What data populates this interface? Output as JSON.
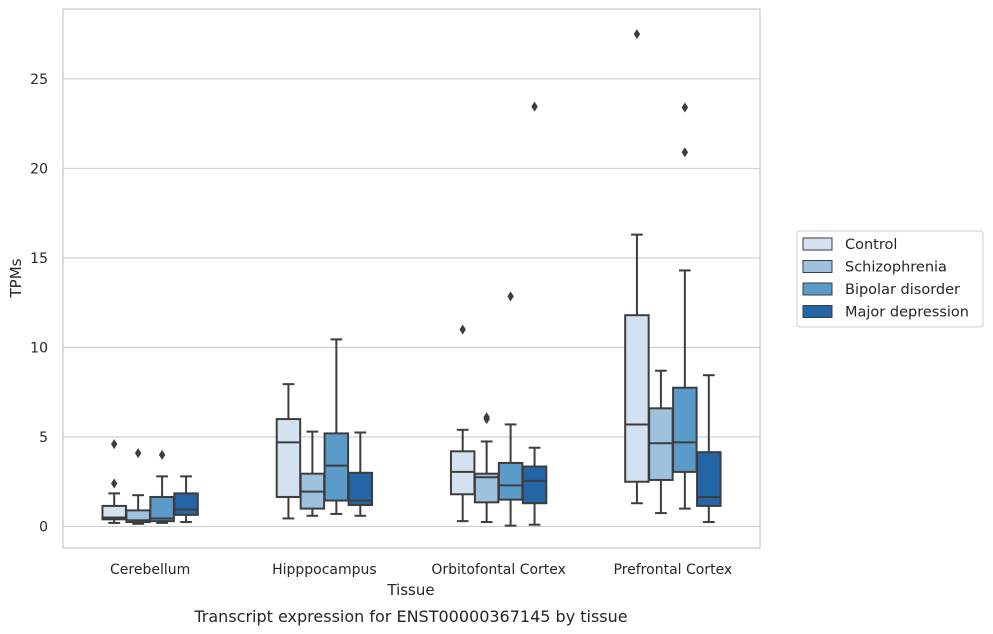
{
  "chart_data": {
    "type": "box",
    "xlabel": "Tissue",
    "ylabel": "TPMs",
    "caption": "Transcript expression for ENST00000367145 by tissue",
    "ylim": [
      -1.2,
      28.9
    ],
    "yticks": [
      0,
      5,
      10,
      15,
      20,
      25
    ],
    "grid": true,
    "legend_position": "right",
    "categories": [
      "Cerebellum",
      "Hipppocampus",
      "Orbitofontal Cortex",
      "Prefrontal Cortex"
    ],
    "series": [
      {
        "name": "Control",
        "color": "#d3e1f0",
        "boxes": [
          {
            "whisker_low": 0.2,
            "q1": 0.4,
            "median": 0.5,
            "q3": 1.15,
            "whisker_high": 1.85,
            "outliers": [
              2.4,
              4.6
            ]
          },
          {
            "whisker_low": 0.45,
            "q1": 1.65,
            "median": 4.7,
            "q3": 6.0,
            "whisker_high": 7.95,
            "outliers": []
          },
          {
            "whisker_low": 0.3,
            "q1": 1.8,
            "median": 3.05,
            "q3": 4.2,
            "whisker_high": 5.4,
            "outliers": [
              11.0
            ]
          },
          {
            "whisker_low": 1.3,
            "q1": 2.5,
            "median": 5.7,
            "q3": 11.8,
            "whisker_high": 16.3,
            "outliers": [
              27.5
            ]
          }
        ]
      },
      {
        "name": "Schizophrenia",
        "color": "#9ec2de",
        "boxes": [
          {
            "whisker_low": 0.15,
            "q1": 0.25,
            "median": 0.35,
            "q3": 0.9,
            "whisker_high": 1.75,
            "outliers": [
              4.1
            ]
          },
          {
            "whisker_low": 0.6,
            "q1": 1.0,
            "median": 1.95,
            "q3": 2.95,
            "whisker_high": 5.3,
            "outliers": []
          },
          {
            "whisker_low": 0.25,
            "q1": 1.35,
            "median": 2.75,
            "q3": 2.95,
            "whisker_high": 4.75,
            "outliers": [
              6.0,
              6.1
            ]
          },
          {
            "whisker_low": 0.75,
            "q1": 2.6,
            "median": 4.65,
            "q3": 6.6,
            "whisker_high": 8.7,
            "outliers": []
          }
        ]
      },
      {
        "name": "Bipolar disorder",
        "color": "#5b9bc9",
        "boxes": [
          {
            "whisker_low": 0.2,
            "q1": 0.3,
            "median": 0.45,
            "q3": 1.65,
            "whisker_high": 2.8,
            "outliers": [
              4.0
            ]
          },
          {
            "whisker_low": 0.7,
            "q1": 1.45,
            "median": 3.4,
            "q3": 5.2,
            "whisker_high": 10.45,
            "outliers": []
          },
          {
            "whisker_low": 0.05,
            "q1": 1.5,
            "median": 2.3,
            "q3": 3.55,
            "whisker_high": 5.7,
            "outliers": [
              12.85
            ]
          },
          {
            "whisker_low": 1.0,
            "q1": 3.05,
            "median": 4.7,
            "q3": 7.75,
            "whisker_high": 14.3,
            "outliers": [
              20.9,
              23.4
            ]
          }
        ]
      },
      {
        "name": "Major depression",
        "color": "#2465a6",
        "boxes": [
          {
            "whisker_low": 0.25,
            "q1": 0.65,
            "median": 0.95,
            "q3": 1.85,
            "whisker_high": 2.8,
            "outliers": []
          },
          {
            "whisker_low": 0.6,
            "q1": 1.2,
            "median": 1.45,
            "q3": 3.0,
            "whisker_high": 5.25,
            "outliers": []
          },
          {
            "whisker_low": 0.1,
            "q1": 1.3,
            "median": 2.55,
            "q3": 3.35,
            "whisker_high": 4.4,
            "outliers": [
              23.45
            ]
          },
          {
            "whisker_low": 0.25,
            "q1": 1.15,
            "median": 1.65,
            "q3": 4.15,
            "whisker_high": 8.45,
            "outliers": []
          }
        ]
      }
    ]
  }
}
